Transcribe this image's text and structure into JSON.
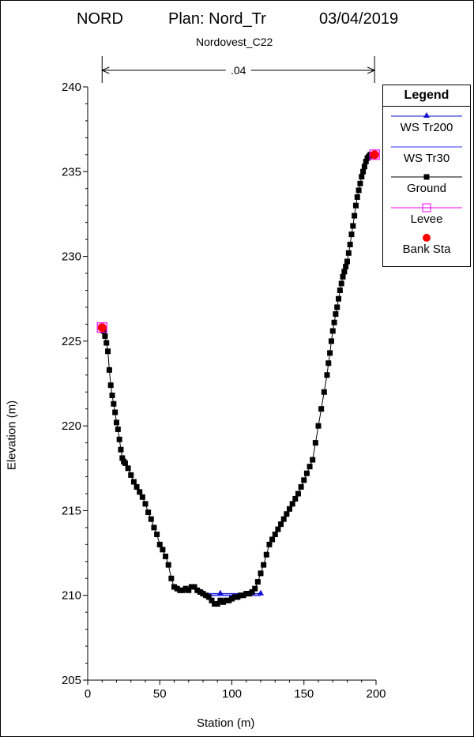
{
  "header": {
    "project": "NORD",
    "plan": "Plan: Nord_Tr",
    "date": "03/04/2019",
    "section": "Nordovest_C22"
  },
  "colors": {
    "ground": "#000000",
    "ws_tr200": "#1010d0",
    "ws_tr30": "#3030ff",
    "levee": "#ff00ff",
    "bank_sta": "#ff0000"
  },
  "legend": {
    "title": "Legend",
    "items": [
      {
        "label": "WS Tr200",
        "marker": "triangle",
        "color": "#1010d0"
      },
      {
        "label": "WS Tr30",
        "marker": "none",
        "color": "#3030ff"
      },
      {
        "label": "Ground",
        "marker": "square",
        "color": "#000000"
      },
      {
        "label": "Levee",
        "marker": "open-square",
        "color": "#ff00ff"
      },
      {
        "label": "Bank Sta",
        "marker": "circle",
        "color": "#ff0000"
      }
    ]
  },
  "chart_data": {
    "type": "line",
    "xlabel": "Station (m)",
    "ylabel": "Elevation (m)",
    "xlim": [
      0,
      200
    ],
    "ylim": [
      205,
      240
    ],
    "xticks": [
      0,
      50,
      100,
      150,
      200
    ],
    "yticks": [
      205,
      210,
      215,
      220,
      225,
      230,
      235,
      240
    ],
    "manning": [
      {
        "value": ".04",
        "from": 10,
        "to": 199
      }
    ],
    "series": [
      {
        "name": "Ground",
        "x": [
          10,
          11,
          12,
          13,
          14,
          15,
          16,
          17,
          18,
          19,
          20,
          21,
          22,
          23,
          24,
          25,
          26,
          28,
          30,
          32,
          34,
          36,
          38,
          40,
          42,
          44,
          46,
          48,
          50,
          52,
          54,
          56,
          58,
          60,
          62,
          64,
          66,
          68,
          70,
          72,
          74,
          76,
          78,
          80,
          82,
          84,
          86,
          88,
          90,
          92,
          94,
          96,
          98,
          100,
          102,
          104,
          106,
          108,
          110,
          112,
          114,
          116,
          118,
          120,
          122,
          124,
          126,
          128,
          130,
          132,
          134,
          136,
          138,
          140,
          142,
          144,
          146,
          148,
          150,
          152,
          154,
          156,
          158,
          160,
          162,
          164,
          166,
          167,
          168,
          169,
          170,
          171,
          172,
          173,
          174,
          175,
          176,
          177,
          178,
          179,
          180,
          181,
          182,
          183,
          184,
          185,
          186,
          187,
          188,
          189,
          190,
          191,
          192,
          193,
          194,
          195,
          196,
          197,
          198,
          199
        ],
        "y": [
          225.8,
          225.6,
          225.3,
          224.9,
          224.4,
          223.3,
          222.4,
          221.8,
          221.3,
          220.8,
          220.2,
          219.8,
          219.2,
          218.6,
          218.1,
          217.9,
          217.8,
          217.5,
          217.1,
          216.7,
          216.4,
          216.1,
          215.8,
          215.4,
          214.9,
          214.5,
          214.0,
          213.6,
          213.0,
          212.7,
          212.3,
          211.8,
          211.0,
          210.5,
          210.4,
          210.3,
          210.3,
          210.4,
          210.3,
          210.5,
          210.5,
          210.3,
          210.2,
          210.1,
          210.0,
          209.9,
          209.7,
          209.5,
          209.5,
          209.7,
          209.6,
          209.7,
          209.7,
          209.8,
          209.9,
          209.9,
          210.0,
          210.0,
          210.1,
          210.1,
          210.2,
          210.4,
          210.8,
          211.3,
          211.8,
          212.4,
          213.0,
          213.3,
          213.6,
          213.9,
          214.2,
          214.5,
          214.8,
          215.1,
          215.4,
          215.7,
          216.0,
          216.4,
          216.8,
          217.2,
          217.6,
          218.0,
          219.0,
          220.0,
          221.0,
          222.0,
          223.0,
          223.7,
          224.3,
          225.0,
          225.6,
          226.1,
          226.6,
          227.0,
          227.5,
          228.0,
          228.4,
          228.8,
          229.1,
          229.4,
          229.7,
          230.2,
          230.7,
          231.3,
          231.8,
          232.4,
          233.0,
          233.5,
          233.9,
          234.3,
          234.7,
          235.0,
          235.3,
          235.6,
          235.8,
          235.9,
          236.0,
          236.0,
          236.0,
          236.0
        ]
      },
      {
        "name": "WS Tr200",
        "x": [
          80,
          92,
          120
        ],
        "y": [
          210.1,
          210.1,
          210.1
        ]
      },
      {
        "name": "WS Tr30",
        "x": [
          80,
          120
        ],
        "y": [
          210.0,
          210.0
        ]
      },
      {
        "name": "Bank Sta",
        "x": [
          10,
          199
        ],
        "y": [
          225.8,
          236.0
        ]
      },
      {
        "name": "Levee",
        "x": [
          10,
          199
        ],
        "y": [
          225.8,
          236.0
        ]
      }
    ]
  }
}
